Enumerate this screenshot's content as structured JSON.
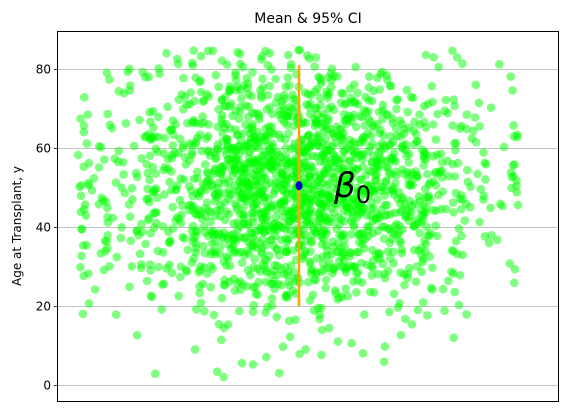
{
  "chart_data": {
    "type": "scatter",
    "title": "Mean & 95% CI",
    "ylabel": "Age at Transplant, y",
    "xlabel": "",
    "ylim": [
      -4,
      89.4
    ],
    "yticks": [
      0,
      20,
      40,
      60,
      80
    ],
    "x_ticks_shown": false,
    "grid": "horizontal",
    "annotation": "β0",
    "series": [
      {
        "kind": "scatter",
        "color": "#00ff00",
        "alpha": 0.5,
        "n_points": 1900,
        "x_range": [
          -1.0,
          1.0
        ],
        "y_mean": 50.5,
        "y_sd": 15.5,
        "y_range": [
          0,
          85
        ]
      }
    ],
    "mean": {
      "y": 50.5,
      "color": "#0000cc"
    },
    "ci_95": {
      "low": 20,
      "high": 81,
      "color": "#ffa500"
    }
  }
}
